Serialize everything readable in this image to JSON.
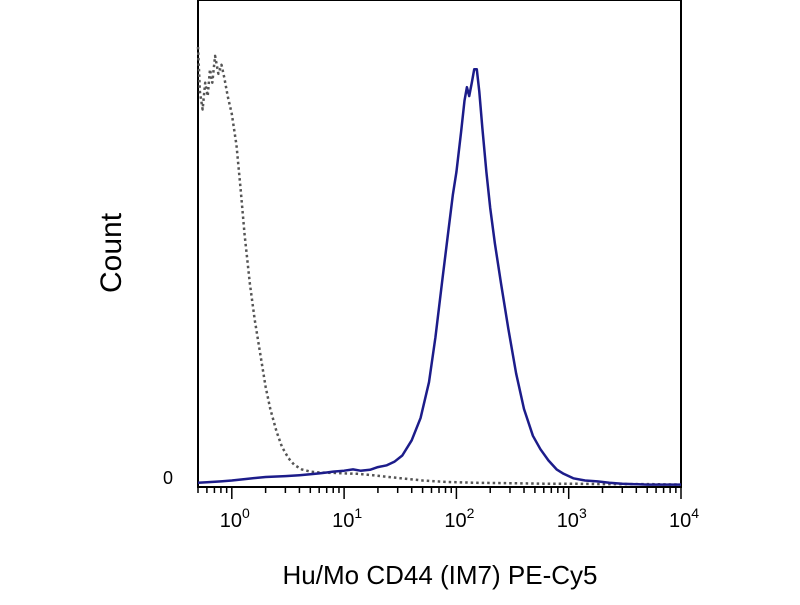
{
  "chart_data": {
    "type": "line",
    "title": "",
    "xlabel": "Hu/Mo CD44 (IM7) PE-Cy5",
    "ylabel": "Count",
    "x_scale": "log",
    "xlim": [
      0.5,
      10000
    ],
    "x_ticks": [
      {
        "value": 1,
        "base": "10",
        "exp": "0"
      },
      {
        "value": 10,
        "base": "10",
        "exp": "1"
      },
      {
        "value": 100,
        "base": "10",
        "exp": "2"
      },
      {
        "value": 1000,
        "base": "10",
        "exp": "3"
      },
      {
        "value": 10000,
        "base": "10",
        "exp": "4"
      }
    ],
    "y_zero_label": "0",
    "ylim": [
      0,
      1
    ],
    "grid": false,
    "series": [
      {
        "style": "dotted",
        "color": "#555555",
        "points": [
          [
            0.5,
            0.98
          ],
          [
            0.52,
            0.88
          ],
          [
            0.55,
            0.84
          ],
          [
            0.58,
            0.9
          ],
          [
            0.61,
            0.87
          ],
          [
            0.64,
            0.93
          ],
          [
            0.67,
            0.9
          ],
          [
            0.71,
            0.96
          ],
          [
            0.76,
            0.92
          ],
          [
            0.81,
            0.94
          ],
          [
            0.86,
            0.91
          ],
          [
            0.92,
            0.87
          ],
          [
            1.0,
            0.83
          ],
          [
            1.1,
            0.76
          ],
          [
            1.2,
            0.66
          ],
          [
            1.3,
            0.56
          ],
          [
            1.45,
            0.45
          ],
          [
            1.6,
            0.37
          ],
          [
            1.8,
            0.29
          ],
          [
            2.0,
            0.22
          ],
          [
            2.2,
            0.17
          ],
          [
            2.5,
            0.12
          ],
          [
            2.8,
            0.085
          ],
          [
            3.2,
            0.06
          ],
          [
            3.6,
            0.045
          ],
          [
            4.2,
            0.035
          ],
          [
            5.0,
            0.03
          ],
          [
            6.0,
            0.028
          ],
          [
            8.0,
            0.027
          ],
          [
            10,
            0.026
          ],
          [
            13,
            0.025
          ],
          [
            18,
            0.022
          ],
          [
            25,
            0.018
          ],
          [
            35,
            0.014
          ],
          [
            50,
            0.01
          ],
          [
            80,
            0.007
          ],
          [
            150,
            0.005
          ],
          [
            300,
            0.004
          ],
          [
            600,
            0.003
          ],
          [
            1000,
            0.003
          ],
          [
            2000,
            0.002
          ],
          [
            5000,
            0.002
          ],
          [
            10000,
            0.001
          ]
        ]
      },
      {
        "style": "solid",
        "color": "#1c1c8a",
        "points": [
          [
            0.5,
            0.005
          ],
          [
            0.6,
            0.006
          ],
          [
            0.8,
            0.008
          ],
          [
            1.0,
            0.01
          ],
          [
            1.4,
            0.014
          ],
          [
            2.0,
            0.018
          ],
          [
            3.0,
            0.02
          ],
          [
            4.0,
            0.022
          ],
          [
            5.0,
            0.024
          ],
          [
            6.0,
            0.026
          ],
          [
            7.0,
            0.028
          ],
          [
            8.0,
            0.03
          ],
          [
            10,
            0.032
          ],
          [
            12,
            0.035
          ],
          [
            14,
            0.032
          ],
          [
            17,
            0.034
          ],
          [
            20,
            0.04
          ],
          [
            24,
            0.044
          ],
          [
            28,
            0.052
          ],
          [
            33,
            0.066
          ],
          [
            40,
            0.1
          ],
          [
            48,
            0.15
          ],
          [
            57,
            0.23
          ],
          [
            65,
            0.33
          ],
          [
            75,
            0.46
          ],
          [
            84,
            0.56
          ],
          [
            93,
            0.65
          ],
          [
            100,
            0.7
          ],
          [
            110,
            0.79
          ],
          [
            118,
            0.86
          ],
          [
            124,
            0.89
          ],
          [
            130,
            0.87
          ],
          [
            137,
            0.9
          ],
          [
            144,
            0.93
          ],
          [
            152,
            0.93
          ],
          [
            160,
            0.88
          ],
          [
            170,
            0.8
          ],
          [
            185,
            0.7
          ],
          [
            200,
            0.62
          ],
          [
            220,
            0.54
          ],
          [
            250,
            0.45
          ],
          [
            290,
            0.35
          ],
          [
            340,
            0.25
          ],
          [
            400,
            0.17
          ],
          [
            480,
            0.11
          ],
          [
            560,
            0.08
          ],
          [
            660,
            0.055
          ],
          [
            780,
            0.035
          ],
          [
            900,
            0.025
          ],
          [
            1100,
            0.015
          ],
          [
            1400,
            0.01
          ],
          [
            1800,
            0.008
          ],
          [
            2300,
            0.005
          ],
          [
            3000,
            0.003
          ],
          [
            5000,
            0.001
          ],
          [
            10000,
            0.001
          ]
        ]
      }
    ]
  }
}
